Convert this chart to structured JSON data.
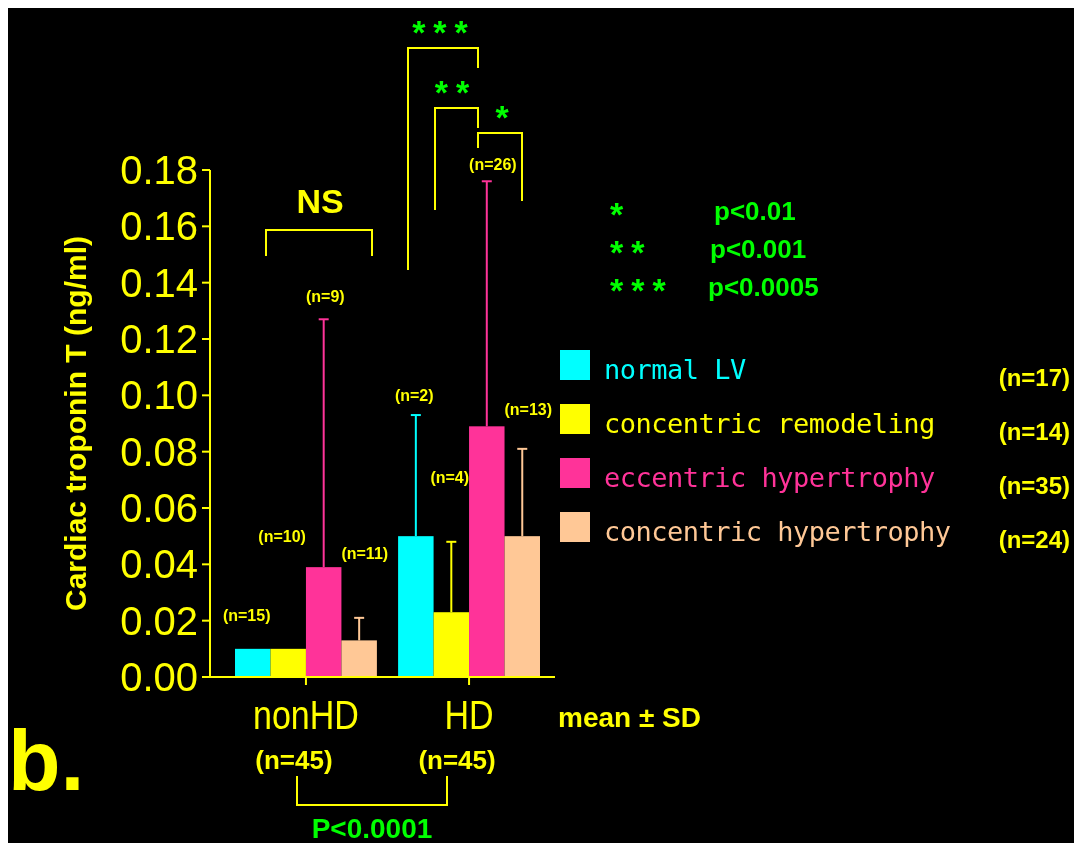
{
  "chart_data": {
    "type": "bar",
    "ylabel": "Cardiac troponin T (ng/ml)",
    "categories": [
      "nonHD",
      "HD"
    ],
    "ylim": [
      0,
      0.18
    ],
    "yticks": [
      {
        "value": 0,
        "label": "0.00"
      },
      {
        "value": 0.02,
        "label": "0.02"
      },
      {
        "value": 0.04,
        "label": "0.04"
      },
      {
        "value": 0.06,
        "label": "0.06"
      },
      {
        "value": 0.08,
        "label": "0.08"
      },
      {
        "value": 0.1,
        "label": "0.10"
      },
      {
        "value": 0.12,
        "label": "0.12"
      },
      {
        "value": 0.14,
        "label": "0.14"
      },
      {
        "value": 0.16,
        "label": "0.16"
      },
      {
        "value": 0.18,
        "label": "0.18"
      }
    ],
    "legend": "right",
    "grid": false,
    "series": [
      {
        "name": "normal LV",
        "color": "#00ffff",
        "values": [
          0.01,
          0.05
        ],
        "errors": [
          null,
          0.043
        ]
      },
      {
        "name": "concentric remodeling",
        "color": "#ffff00",
        "values": [
          0.01,
          0.023
        ],
        "errors": [
          null,
          0.025
        ]
      },
      {
        "name": "eccentric hypertrophy",
        "color": "#ff3399",
        "values": [
          0.039,
          0.089
        ],
        "errors": [
          0.088,
          0.087
        ]
      },
      {
        "name": "concentric hypertrophy",
        "color": "#ffc896",
        "values": [
          0.013,
          0.05
        ],
        "errors": [
          0.008,
          0.031
        ]
      }
    ],
    "annotations": [
      "NS",
      "***",
      "**",
      "*",
      "*",
      "p<0.01",
      "**",
      "p<0.001",
      "***",
      "p<0.0005",
      "(n=17)",
      "(n=14)",
      "(n=35)",
      "(n=24)",
      "(n=45)",
      "(n=45)",
      "P<0.0001",
      "mean ± SD",
      "b.",
      "(n=15)",
      "(n=10)",
      "(n=9)",
      "(n=11)",
      "(n=2)",
      "(n=4)",
      "(n=26)",
      "(n=13)"
    ]
  }
}
